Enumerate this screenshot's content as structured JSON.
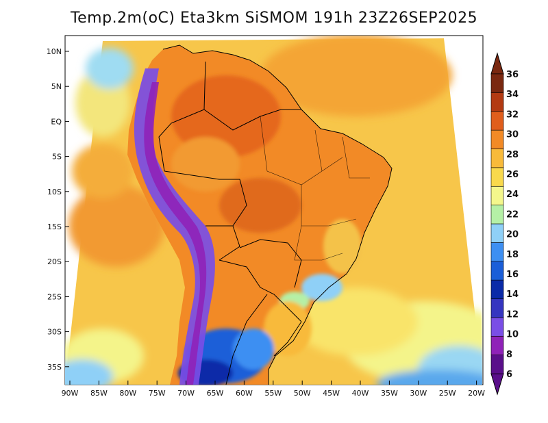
{
  "title": "Temp.2m(oC) Eta3km SiSMOM 191h 23Z26SEP2025",
  "map": {
    "lat_labels": [
      "10N",
      "5N",
      "EQ",
      "5S",
      "10S",
      "15S",
      "20S",
      "25S",
      "30S",
      "35S"
    ],
    "lon_labels": [
      "90W",
      "85W",
      "80W",
      "75W",
      "70W",
      "65W",
      "60W",
      "55W",
      "50W",
      "45W",
      "40W",
      "35W",
      "30W",
      "25W",
      "20W"
    ]
  },
  "colorbar": {
    "labels": [
      "6",
      "8",
      "10",
      "12",
      "14",
      "16",
      "18",
      "20",
      "22",
      "24",
      "26",
      "28",
      "30",
      "32",
      "34",
      "36"
    ],
    "colors": [
      "#5a0f8a",
      "#8f22b8",
      "#7a4ee6",
      "#3535c0",
      "#0a2aa8",
      "#1a5ed8",
      "#3d8ff2",
      "#8fd0f7",
      "#b5f0a6",
      "#f4f78c",
      "#f9d94c",
      "#f8ba3a",
      "#f28a26",
      "#e05e1c",
      "#b33a12",
      "#7a2810"
    ]
  }
}
